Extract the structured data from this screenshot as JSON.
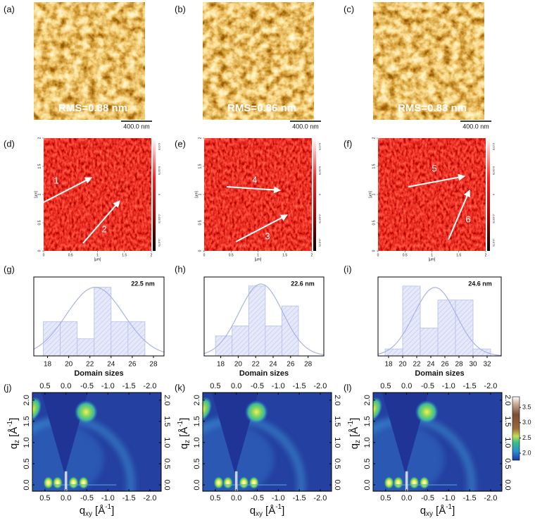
{
  "afm": [
    {
      "label": "(a)",
      "rms": "RMS=0.88 nm",
      "scale": "400.0 nm"
    },
    {
      "label": "(b)",
      "rms": "RMS=0.86 nm",
      "scale": "400.0 nm"
    },
    {
      "label": "(c)",
      "rms": "RMS=0.83 nm",
      "scale": "400.0 nm"
    }
  ],
  "phase": [
    {
      "label": "(d)",
      "arrows": [
        "1",
        "2"
      ]
    },
    {
      "label": "(e)",
      "arrows": [
        "4",
        "3"
      ]
    },
    {
      "label": "(f)",
      "arrows": [
        "5",
        "6"
      ]
    }
  ],
  "phase_axes": {
    "lim": [
      0,
      2
    ],
    "ticks": [
      0,
      0.5,
      1,
      1.5,
      2
    ],
    "unit": "[µm]",
    "colorbar_ticks": [
      0.075,
      0.0375,
      0,
      -0.0375,
      -0.075
    ]
  },
  "histograms": [
    {
      "type": "histogram",
      "label": "(g)",
      "annotation": "22.5 nm",
      "bins": [
        17.6,
        19.2,
        20.8,
        22.4,
        24.0,
        25.6,
        27.2
      ],
      "counts": [
        2,
        2,
        1,
        4,
        2,
        2
      ],
      "xlim": [
        16.7,
        29.0
      ],
      "ylim": [
        0,
        4.6
      ],
      "xticks": [
        18,
        20,
        22,
        24,
        26,
        28
      ],
      "fit": {
        "mean": 22.5,
        "sd": 2.7,
        "peak": 4
      }
    },
    {
      "type": "histogram",
      "label": "(h)",
      "annotation": "22.6 nm",
      "bins": [
        17.4,
        19.3,
        21.2,
        23.1,
        25.0,
        26.9
      ],
      "counts": [
        2,
        3,
        7,
        3,
        5
      ],
      "xlim": [
        16.1,
        29.8
      ],
      "ylim": [
        0,
        7.9
      ],
      "xticks": [
        18,
        20,
        22,
        24,
        26,
        28
      ],
      "fit": {
        "mean": 22.6,
        "sd": 2.5,
        "peak": 7.2
      }
    },
    {
      "type": "histogram",
      "label": "(i)",
      "annotation": "24.6 nm",
      "bins": [
        17.5,
        20.0,
        22.5,
        25.0,
        27.5,
        30.0,
        32.5
      ],
      "counts": [
        1,
        10,
        4,
        8,
        8,
        1
      ],
      "xlim": [
        16.5,
        34.0
      ],
      "ylim": [
        0,
        11.3
      ],
      "xticks": [
        18,
        20,
        22,
        24,
        26,
        28,
        30,
        32
      ],
      "fit": {
        "mean": 24.6,
        "sd": 3,
        "peak": 9.8
      }
    }
  ],
  "histogram_xlabel": "Domain sizes",
  "giwaxs": {
    "panels": [
      {
        "label": "(j)"
      },
      {
        "label": "(k)"
      },
      {
        "label": "(l)"
      }
    ],
    "xlim": [
      0.8,
      -2.27
    ],
    "ylim": [
      -0.15,
      2.18
    ],
    "xticks": [
      {
        "value": 0.5,
        "label": "0.5"
      },
      {
        "value": 0,
        "label": "0.0"
      },
      {
        "value": -0.5,
        "label": "-0.5"
      },
      {
        "value": -1,
        "label": "-1.0"
      },
      {
        "value": -1.5,
        "label": "-1.5"
      },
      {
        "value": -2,
        "label": "-2.0"
      }
    ],
    "yticks": [
      {
        "value": 0,
        "label": "0.0"
      },
      {
        "value": 0.5,
        "label": "0.5"
      },
      {
        "value": 1,
        "label": "1.0"
      },
      {
        "value": 1.5,
        "label": "1.5"
      },
      {
        "value": 2,
        "label": "2.0"
      }
    ],
    "xlabel": {
      "base": "q",
      "sub": "xy",
      "unit": "[Å",
      "sup": "-1",
      "close": "]"
    },
    "ylabel": {
      "base": "q",
      "sub": "z",
      "unit": "[Å",
      "sup": "-1",
      "close": "]"
    },
    "colorbar": {
      "lim": [
        1.77,
        3.85
      ],
      "ticks": [
        {
          "value": 2,
          "label": "2.0"
        },
        {
          "value": 2.5,
          "label": "2.5"
        },
        {
          "value": 3,
          "label": "3.0"
        },
        {
          "value": 3.5,
          "label": "3.5"
        }
      ]
    }
  }
}
